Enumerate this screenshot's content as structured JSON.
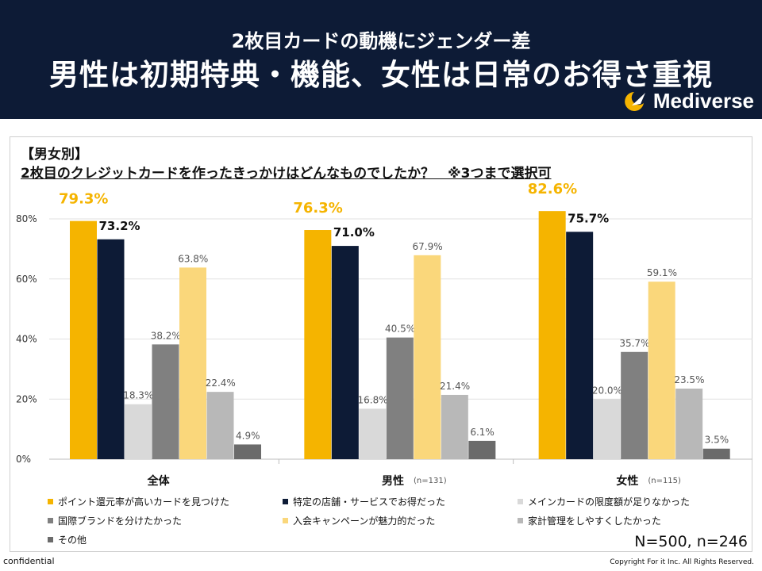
{
  "header": {
    "subtitle": "2枚目カードの動機にジェンダー差",
    "title": "男性は初期特典・機能、女性は日常のお得さ重視",
    "brand": "Mediverse",
    "brand_icon": "crescent-rocket-icon"
  },
  "question": {
    "label": "【男女別】",
    "text": "2枚目のクレジットカードを作ったきっかけはどんなものでしたか？　※3つまで選択可"
  },
  "chart_data": {
    "type": "bar",
    "ylim": [
      0,
      85
    ],
    "y_ticks": [
      "0%",
      "20%",
      "40%",
      "60%",
      "80%"
    ],
    "y_tick_values": [
      0,
      20,
      40,
      60,
      80
    ],
    "grid": true,
    "legend_placement": "bottom",
    "groups": [
      {
        "label": "全体",
        "note": ""
      },
      {
        "label": "男性",
        "note": "(n=131)"
      },
      {
        "label": "女性",
        "note": "(n=115)"
      }
    ],
    "series": [
      {
        "name": "ポイント還元率が高いカードを見つけた",
        "color": "#f5b400",
        "label_style": "highlight",
        "values": [
          79.3,
          76.3,
          82.6
        ],
        "labels": [
          "79.3%",
          "76.3%",
          "82.6%"
        ]
      },
      {
        "name": "特定の店舗・サービスでお得だった",
        "color": "#0d1b36",
        "label_style": "bold",
        "values": [
          73.2,
          71.0,
          75.7
        ],
        "labels": [
          "73.2%",
          "71.0%",
          "75.7%"
        ]
      },
      {
        "name": "メインカードの限度額が足りなかった",
        "color": "#d9d9d9",
        "label_style": "normal",
        "values": [
          18.3,
          16.8,
          20.0
        ],
        "labels": [
          "18.3%",
          "16.8%",
          "20.0%"
        ]
      },
      {
        "name": "国際ブランドを分けたかった",
        "color": "#808080",
        "label_style": "normal",
        "values": [
          38.2,
          40.5,
          35.7
        ],
        "labels": [
          "38.2%",
          "40.5%",
          "35.7%"
        ]
      },
      {
        "name": "入会キャンペーンが魅力的だった",
        "color": "#fad77b",
        "label_style": "normal",
        "values": [
          63.8,
          67.9,
          59.1
        ],
        "labels": [
          "63.8%",
          "67.9%",
          "59.1%"
        ]
      },
      {
        "name": "家計管理をしやすくしたかった",
        "color": "#b8b8b8",
        "label_style": "normal",
        "values": [
          22.4,
          21.4,
          23.5
        ],
        "labels": [
          "22.4%",
          "21.4%",
          "23.5%"
        ]
      },
      {
        "name": "その他",
        "color": "#6b6b6b",
        "label_style": "normal",
        "values": [
          4.9,
          6.1,
          3.5
        ],
        "labels": [
          "4.9%",
          "6.1%",
          "3.5%"
        ]
      }
    ]
  },
  "footer": {
    "n_note": "N=500, n=246",
    "confidential": "confidential",
    "copyright": "Copyright For it Inc. All Rights Reserved."
  }
}
